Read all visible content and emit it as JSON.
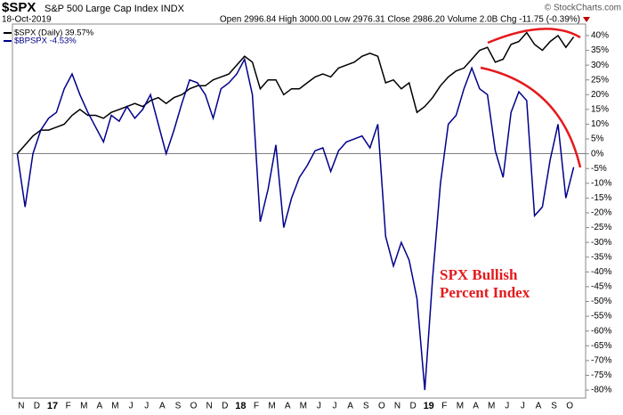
{
  "chart_data": {
    "type": "line",
    "title": "$SPX",
    "subtitle": "S&P 500 Large Cap Index INDX",
    "date": "18-Oct-2019",
    "quote": "Open 2996.84 High 3000.00 Low 2976.31 Close 2986.20 Volume 2.0B Chg -11.75 (-0.39%)",
    "credit": "© StockCharts.com",
    "annotation": [
      "SPX Bullish",
      "Percent Index"
    ],
    "categories": [
      "N",
      null,
      "D",
      null,
      "17",
      null,
      "F",
      null,
      "M",
      null,
      "A",
      null,
      "M",
      null,
      "J",
      null,
      "J",
      null,
      "A",
      null,
      "S",
      null,
      "O",
      null,
      "N",
      null,
      "D",
      null,
      "18",
      null,
      "F",
      null,
      "M",
      null,
      "A",
      null,
      "M",
      null,
      "J",
      null,
      "J",
      null,
      "A",
      null,
      "S",
      null,
      "O",
      null,
      "N",
      null,
      "D",
      null,
      "19",
      null,
      "F",
      null,
      "M",
      null,
      "A",
      null,
      "M",
      null,
      "J",
      null,
      "J",
      null,
      "A",
      null,
      "S",
      null,
      "O",
      null
    ],
    "series": [
      {
        "name": "$SPX (Daily) 39.57%",
        "color": "#000000",
        "values": [
          0,
          3,
          6,
          8,
          8,
          9,
          10,
          13,
          15,
          13,
          13,
          12,
          14,
          15,
          16,
          17,
          16,
          18,
          19,
          17,
          19,
          20,
          22,
          23,
          23,
          25,
          26,
          27,
          30,
          33,
          31,
          22,
          25,
          25,
          20,
          22,
          22,
          24,
          26,
          27,
          26,
          29,
          30,
          31,
          33,
          34,
          33,
          24,
          25,
          22,
          24,
          14,
          16,
          19,
          23,
          26,
          28,
          29,
          32,
          35,
          36,
          31,
          32,
          37,
          38,
          41,
          37,
          35,
          38,
          40,
          36,
          39.57
        ]
      },
      {
        "name": "$BPSPX -4.53%",
        "color": "#00008b",
        "values": [
          0,
          -18,
          0,
          8,
          12,
          14,
          22,
          27,
          20,
          14,
          9,
          4,
          13,
          11,
          16,
          12,
          15,
          20,
          10,
          0,
          8,
          17,
          25,
          24,
          20,
          12,
          22,
          24,
          27,
          32,
          20,
          -23,
          -12,
          3,
          -25,
          -15,
          -8,
          -4,
          1,
          2,
          -6,
          1,
          4,
          5,
          6,
          2,
          10,
          -28,
          -38,
          -30,
          -36,
          -49,
          -80,
          -42,
          -10,
          10,
          13,
          22,
          29,
          22,
          20,
          1,
          -8,
          14,
          21,
          18,
          -21,
          -18,
          -2,
          10,
          -15,
          -4.53
        ]
      }
    ],
    "ylim": [
      -82.7,
      43.9
    ],
    "yticks": [
      {
        "value": 40,
        "label": "40%"
      },
      {
        "value": 35,
        "label": "35%"
      },
      {
        "value": 30,
        "label": "30%"
      },
      {
        "value": 25,
        "label": "25%"
      },
      {
        "value": 20,
        "label": "20%"
      },
      {
        "value": 15,
        "label": "15%"
      },
      {
        "value": 10,
        "label": "10%"
      },
      {
        "value": 5,
        "label": "5%"
      },
      {
        "value": 0,
        "label": "0%"
      },
      {
        "value": -5,
        "label": "-5%"
      },
      {
        "value": -10,
        "label": "-10%"
      },
      {
        "value": -15,
        "label": "-15%"
      },
      {
        "value": -20,
        "label": "-20%"
      },
      {
        "value": -25,
        "label": "-25%"
      },
      {
        "value": -30,
        "label": "-30%"
      },
      {
        "value": -35,
        "label": "-35%"
      },
      {
        "value": -40,
        "label": "-40%"
      },
      {
        "value": -45,
        "label": "-45%"
      },
      {
        "value": -50,
        "label": "-50%"
      },
      {
        "value": -55,
        "label": "-55%"
      },
      {
        "value": -60,
        "label": "-60%"
      },
      {
        "value": -65,
        "label": "-65%"
      },
      {
        "value": -70,
        "label": "-70%"
      },
      {
        "value": -75,
        "label": "-75%"
      },
      {
        "value": -80,
        "label": "-80%"
      }
    ],
    "zero_line": true
  }
}
